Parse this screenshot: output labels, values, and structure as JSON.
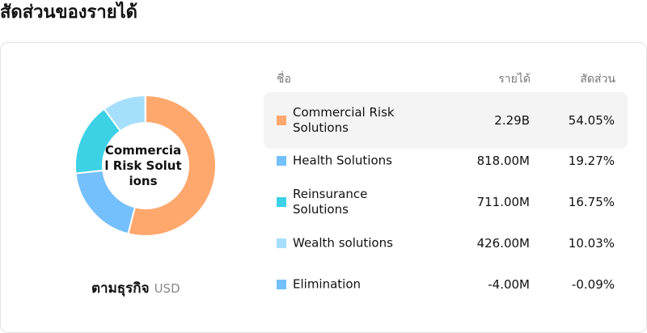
{
  "chart_data": {
    "type": "pie",
    "title": "สัดส่วนของรายได้",
    "center_label": "Commercial Risk Solutions",
    "subtitle": "ตามธุรกิจ",
    "unit": "USD",
    "columns": [
      "ชื่อ",
      "รายได้",
      "สัดส่วน"
    ],
    "categories": [
      "Commercial Risk Solutions",
      "Health Solutions",
      "Reinsurance Solutions",
      "Wealth solutions",
      "Elimination"
    ],
    "revenue": [
      "2.29B",
      "818.00M",
      "711.00M",
      "426.00M",
      "-4.00M"
    ],
    "values": [
      54.05,
      19.27,
      16.75,
      10.03,
      -0.09
    ],
    "value_labels": [
      "54.05%",
      "19.27%",
      "16.75%",
      "10.03%",
      "-0.09%"
    ],
    "colors": [
      "#ffa86e",
      "#74c0fc",
      "#3dd1e6",
      "#a5dffc",
      "#74c0fc"
    ]
  }
}
